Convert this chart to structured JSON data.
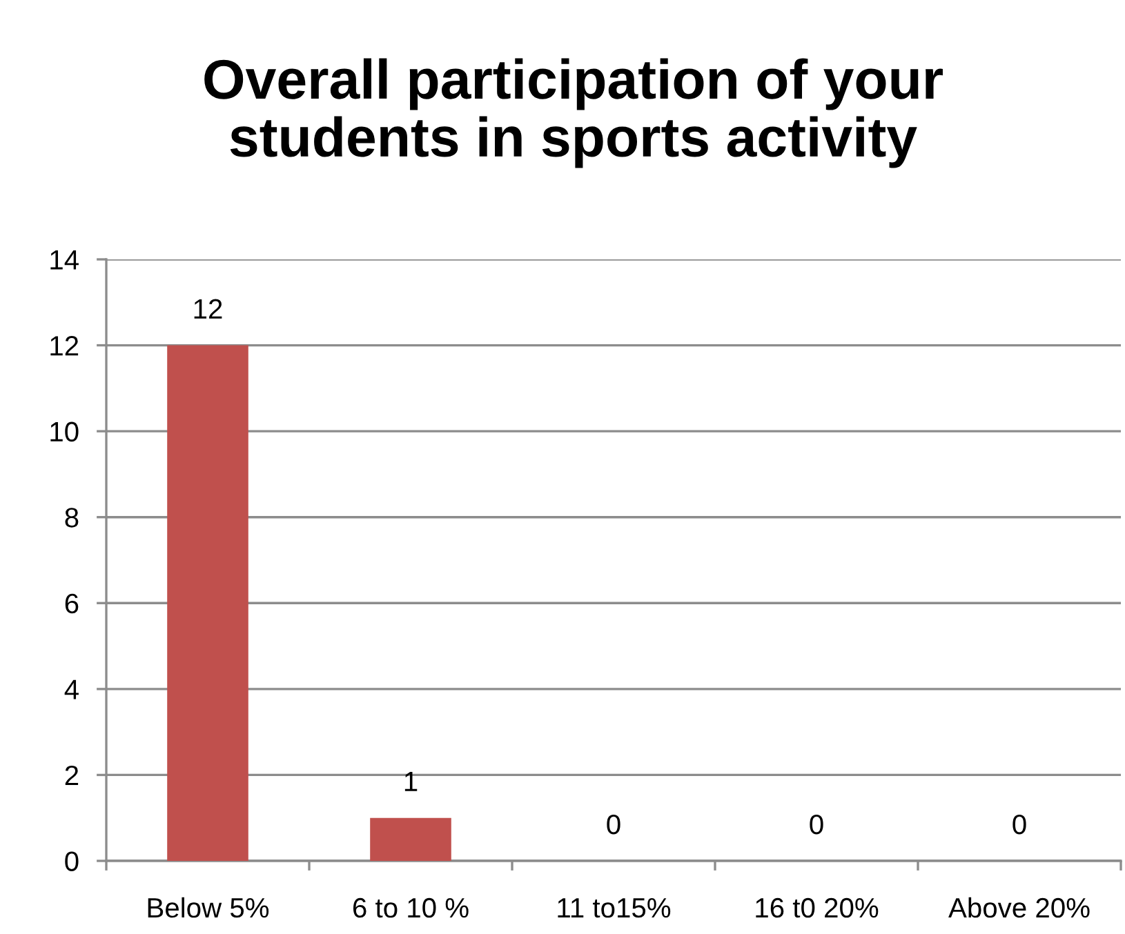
{
  "chart_data": {
    "type": "bar",
    "title": "Overall participation of your students in sports activity",
    "categories": [
      "Below 5%",
      "6 to 10 %",
      "11 to15%",
      "16 t0 20%",
      "Above 20%"
    ],
    "values": [
      12,
      1,
      0,
      0,
      0
    ],
    "color": "#c0504d",
    "ylim": [
      0,
      14
    ],
    "yticks": [
      0,
      2,
      4,
      6,
      8,
      10,
      12,
      14
    ],
    "grid": "y",
    "data_labels": true,
    "legend": false
  }
}
